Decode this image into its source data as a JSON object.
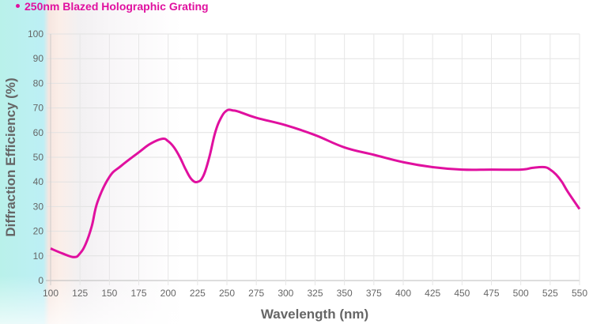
{
  "chart_data": {
    "type": "line",
    "title": "",
    "xlabel": "Wavelength (nm)",
    "ylabel": "Diffraction Efficiency (%)",
    "xlim": [
      100,
      550
    ],
    "ylim": [
      0,
      100
    ],
    "x_ticks": [
      100,
      125,
      150,
      175,
      200,
      225,
      250,
      275,
      300,
      325,
      350,
      375,
      400,
      425,
      450,
      475,
      500,
      525,
      550
    ],
    "y_ticks": [
      0,
      10,
      20,
      30,
      40,
      50,
      60,
      70,
      80,
      90,
      100
    ],
    "grid": true,
    "legend_position": "top-left",
    "series": [
      {
        "name": "250nm Blazed Holographic Grating",
        "color": "#e0109f",
        "x": [
          100,
          110,
          120,
          125,
          130,
          135,
          140,
          150,
          160,
          175,
          185,
          195,
          200,
          205,
          210,
          215,
          220,
          225,
          230,
          235,
          240,
          245,
          250,
          255,
          260,
          275,
          300,
          325,
          350,
          375,
          400,
          425,
          450,
          475,
          500,
          510,
          520,
          525,
          530,
          535,
          540,
          550
        ],
        "y": [
          13,
          11,
          9.5,
          11,
          15,
          22,
          32,
          42,
          46.5,
          52,
          55.5,
          57.5,
          56.5,
          54,
          50,
          45,
          41,
          40,
          42.5,
          50,
          60,
          66,
          69,
          69,
          68.5,
          66,
          63,
          59,
          54,
          51,
          48,
          46,
          45,
          45,
          45,
          45.7,
          46,
          45,
          43,
          40,
          36,
          29
        ]
      }
    ]
  }
}
